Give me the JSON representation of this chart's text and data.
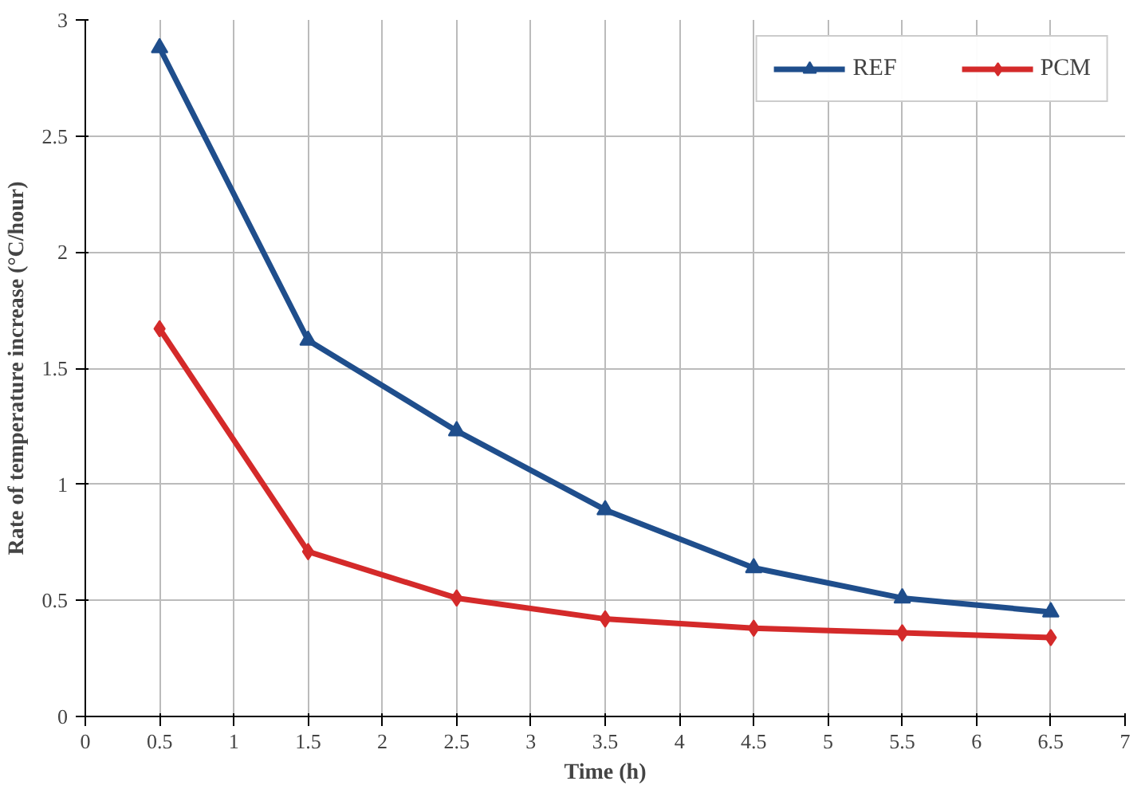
{
  "chart_data": {
    "type": "line",
    "xlabel": "Time (h)",
    "ylabel": "Rate of temperature increase (°C/hour)",
    "x": [
      0.5,
      1.5,
      2.5,
      3.5,
      4.5,
      5.5,
      6.5
    ],
    "series": [
      {
        "name": "REF",
        "color": "#1f4e8c",
        "marker": "triangle",
        "values": [
          2.88,
          1.62,
          1.23,
          0.89,
          0.64,
          0.51,
          0.45
        ]
      },
      {
        "name": "PCM",
        "color": "#d42a2a",
        "marker": "diamond",
        "values": [
          1.67,
          0.71,
          0.51,
          0.42,
          0.38,
          0.36,
          0.34
        ]
      }
    ],
    "xlim": [
      0,
      7
    ],
    "xticks": [
      0,
      0.5,
      1,
      1.5,
      2,
      2.5,
      3,
      3.5,
      4,
      4.5,
      5,
      5.5,
      6,
      6.5,
      7
    ],
    "ylim": [
      0,
      3
    ],
    "yticks": [
      0,
      0.5,
      1,
      1.5,
      2,
      2.5,
      3
    ],
    "grid": true,
    "legend": "top right",
    "line_style": "solid"
  }
}
